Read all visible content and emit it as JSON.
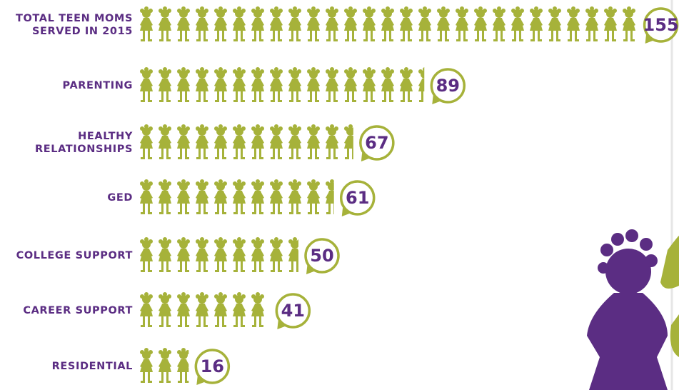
{
  "chart_data": {
    "type": "pictogram",
    "categories": [
      "TOTAL TEEN MOMS\nSERVED IN 2015",
      "PARENTING",
      "HEALTHY\nRELATIONSHIPS",
      "GED",
      "COLLEGE SUPPORT",
      "CAREER SUPPORT",
      "RESIDENTIAL"
    ],
    "values": [
      155,
      89,
      67,
      61,
      50,
      41,
      16
    ],
    "color": "#a6b23a",
    "label_color": "#5b2d83"
  }
}
